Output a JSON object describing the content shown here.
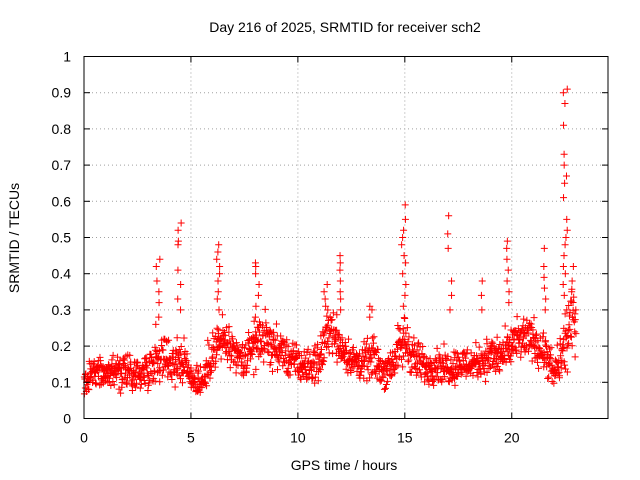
{
  "chart_data": {
    "type": "scatter",
    "title": "Day 216 of 2025, SRMTID for receiver sch2",
    "xlabel": "GPS time / hours",
    "ylabel": "SRMTID / TECUs",
    "xlim": [
      0,
      24.5
    ],
    "ylim": [
      0,
      1
    ],
    "x_ticks": [
      0,
      5,
      10,
      15,
      20
    ],
    "x_tick_labels": [
      "0",
      "5",
      "10",
      "15",
      "20"
    ],
    "y_ticks": [
      0,
      0.1,
      0.2,
      0.3,
      0.4,
      0.5,
      0.6,
      0.7,
      0.8,
      0.9,
      1
    ],
    "y_tick_labels": [
      "0",
      "0.1",
      "0.2",
      "0.3",
      "0.4",
      "0.5",
      "0.6",
      "0.7",
      "0.8",
      "0.9",
      "1"
    ],
    "grid": true,
    "marker": "+",
    "marker_color": "#ff0000",
    "baseline_profile": {
      "x": [
        0,
        0.5,
        1,
        1.5,
        2,
        2.5,
        3,
        3.5,
        4,
        4.5,
        5,
        5.5,
        6,
        6.5,
        7,
        7.5,
        8,
        8.5,
        9,
        9.5,
        10,
        10.5,
        11,
        11.5,
        12,
        12.5,
        13,
        13.5,
        14,
        14.5,
        15,
        15.5,
        16,
        16.5,
        17,
        17.5,
        18,
        18.5,
        19,
        19.5,
        20,
        20.5,
        21,
        21.5,
        22,
        22.5,
        23
      ],
      "mean": [
        0.1,
        0.13,
        0.12,
        0.13,
        0.14,
        0.12,
        0.14,
        0.17,
        0.16,
        0.17,
        0.12,
        0.1,
        0.18,
        0.22,
        0.17,
        0.16,
        0.21,
        0.22,
        0.19,
        0.17,
        0.15,
        0.14,
        0.16,
        0.26,
        0.2,
        0.16,
        0.15,
        0.17,
        0.13,
        0.16,
        0.22,
        0.16,
        0.14,
        0.15,
        0.14,
        0.15,
        0.15,
        0.16,
        0.17,
        0.17,
        0.2,
        0.22,
        0.22,
        0.18,
        0.12,
        0.2,
        0.3
      ],
      "spread": [
        0.04,
        0.04,
        0.04,
        0.05,
        0.06,
        0.05,
        0.05,
        0.06,
        0.07,
        0.07,
        0.05,
        0.05,
        0.06,
        0.07,
        0.06,
        0.06,
        0.07,
        0.07,
        0.06,
        0.06,
        0.05,
        0.05,
        0.06,
        0.07,
        0.06,
        0.05,
        0.05,
        0.06,
        0.05,
        0.06,
        0.08,
        0.06,
        0.05,
        0.05,
        0.05,
        0.05,
        0.05,
        0.05,
        0.06,
        0.06,
        0.06,
        0.06,
        0.06,
        0.06,
        0.05,
        0.08,
        0.1
      ],
      "samples_per_hour": 65
    },
    "spikes": [
      {
        "x": 3.45,
        "values": [
          0.44,
          0.42,
          0.38,
          0.35,
          0.32,
          0.28,
          0.26
        ]
      },
      {
        "x": 4.45,
        "values": [
          0.54,
          0.52,
          0.49,
          0.48,
          0.41,
          0.37,
          0.33,
          0.3
        ]
      },
      {
        "x": 6.3,
        "values": [
          0.48,
          0.46,
          0.44,
          0.42,
          0.4,
          0.38,
          0.35,
          0.33,
          0.3
        ]
      },
      {
        "x": 8.1,
        "values": [
          0.43,
          0.42,
          0.4,
          0.37,
          0.34,
          0.31,
          0.28
        ]
      },
      {
        "x": 11.3,
        "values": [
          0.37,
          0.35,
          0.33,
          0.31
        ]
      },
      {
        "x": 12.0,
        "values": [
          0.45,
          0.43,
          0.41,
          0.38,
          0.35,
          0.33,
          0.3
        ]
      },
      {
        "x": 13.4,
        "values": [
          0.31,
          0.3,
          0.28
        ]
      },
      {
        "x": 14.95,
        "values": [
          0.59,
          0.55,
          0.52,
          0.5,
          0.48,
          0.45,
          0.43,
          0.4,
          0.37,
          0.34,
          0.31
        ]
      },
      {
        "x": 17.1,
        "values": [
          0.56,
          0.51,
          0.47,
          0.38,
          0.34,
          0.3
        ]
      },
      {
        "x": 18.6,
        "values": [
          0.38,
          0.34,
          0.3
        ]
      },
      {
        "x": 19.8,
        "values": [
          0.49,
          0.47,
          0.44,
          0.41,
          0.38,
          0.35,
          0.32
        ]
      },
      {
        "x": 21.5,
        "values": [
          0.47,
          0.42,
          0.39,
          0.36,
          0.33,
          0.3
        ]
      },
      {
        "x": 22.5,
        "values": [
          0.91,
          0.9,
          0.87,
          0.81,
          0.73,
          0.7,
          0.67,
          0.65,
          0.61,
          0.55,
          0.52,
          0.5,
          0.48,
          0.45,
          0.42,
          0.4,
          0.37,
          0.34,
          0.3
        ]
      },
      {
        "x": 22.9,
        "values": [
          0.42,
          0.38,
          0.35,
          0.3
        ]
      }
    ]
  }
}
